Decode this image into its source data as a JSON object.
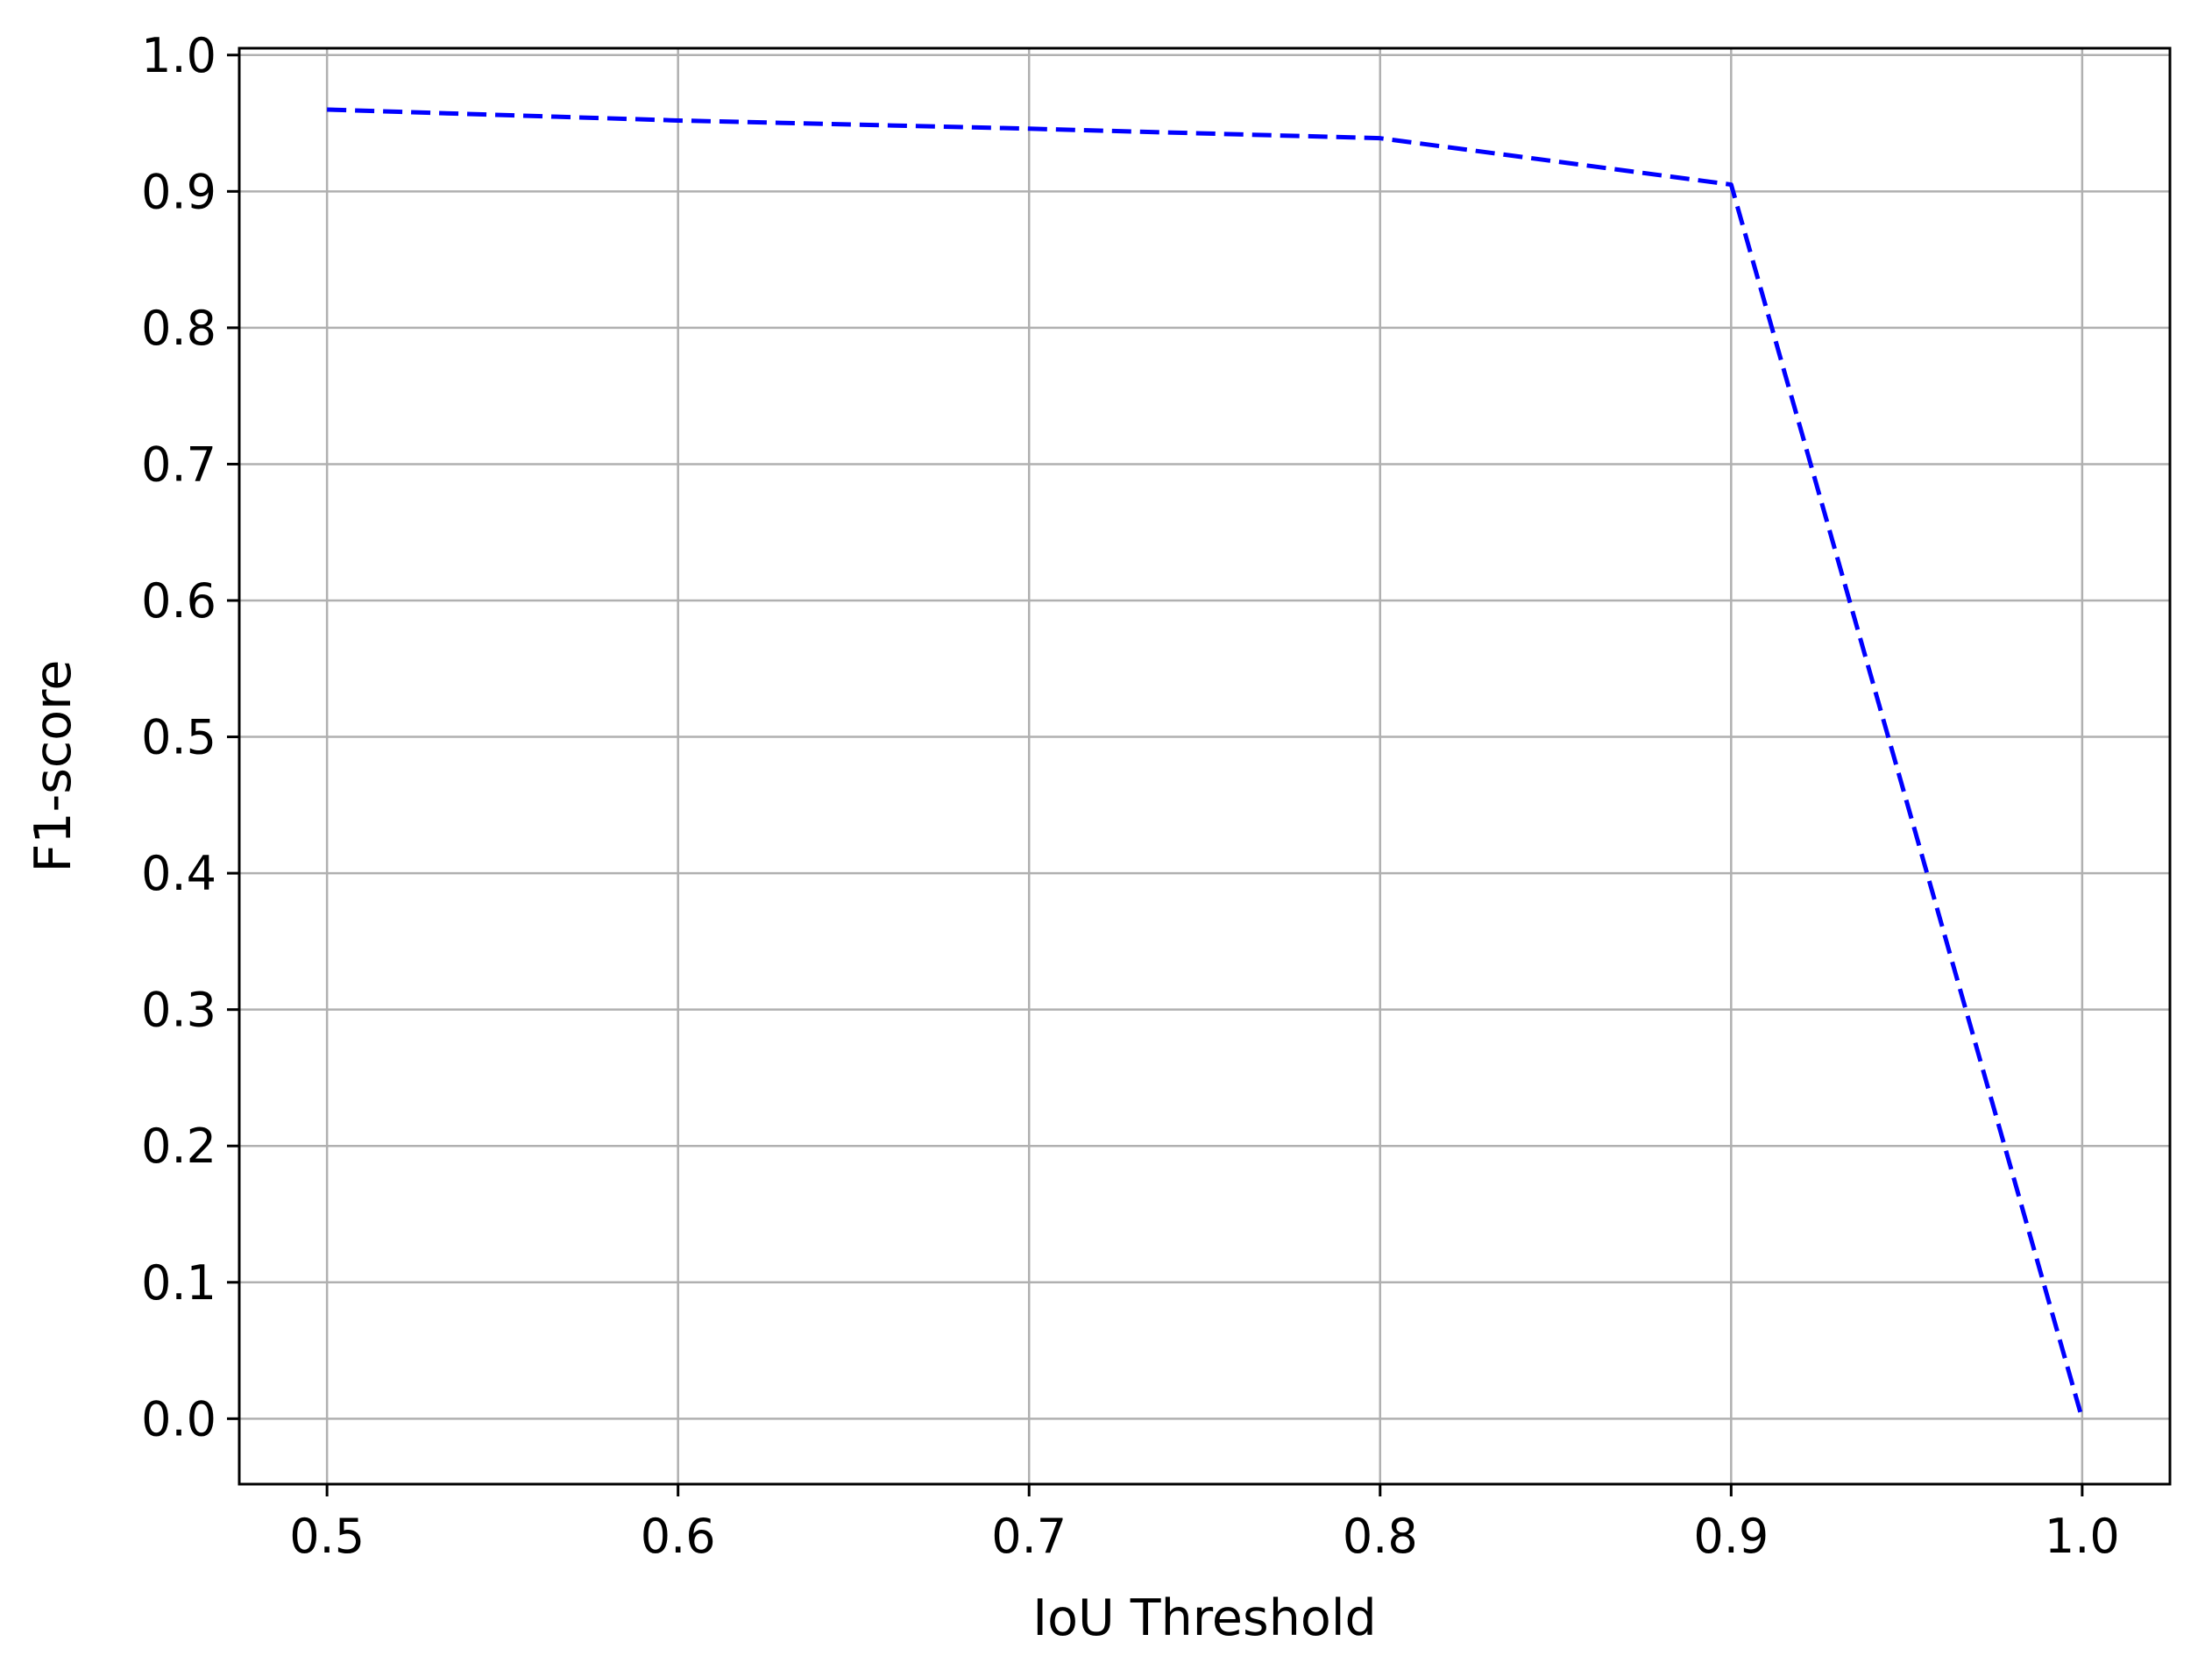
{
  "chart_data": {
    "type": "line",
    "title": "",
    "xlabel": "IoU Threshold",
    "ylabel": "F1-score",
    "xlim": [
      0.475,
      1.025
    ],
    "ylim": [
      -0.048,
      1.005
    ],
    "x_ticks": [
      "0.5",
      "0.6",
      "0.7",
      "0.8",
      "0.9",
      "1.0"
    ],
    "y_ticks": [
      "0.0",
      "0.1",
      "0.2",
      "0.3",
      "0.4",
      "0.5",
      "0.6",
      "0.7",
      "0.8",
      "0.9",
      "1.0"
    ],
    "grid": true,
    "legend": "none",
    "series": [
      {
        "x": [
          0.5,
          0.6,
          0.7,
          0.8,
          0.9,
          1.0
        ],
        "y": [
          0.96,
          0.952,
          0.946,
          0.939,
          0.905,
          0.0
        ],
        "color": "#0000ff",
        "line_style": "dashed"
      }
    ]
  }
}
